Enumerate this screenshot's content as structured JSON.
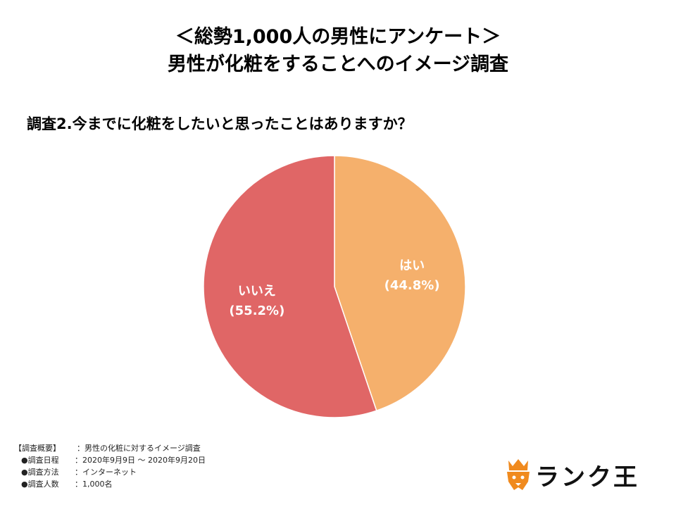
{
  "title": {
    "line1": "＜総勢1,000人の男性にアンケート＞",
    "line2": "男性が化粧をすることへのイメージ調査"
  },
  "question": "調査2.今までに化粧をしたいと思ったことはありますか？",
  "chart_data": {
    "type": "pie",
    "title": "調査2.今までに化粧をしたいと思ったことはありますか？",
    "start": "12 o'clock, clockwise",
    "slices": [
      {
        "label": "はい",
        "value": 44.8,
        "display": "(44.8%)",
        "color": "#F5B06C"
      },
      {
        "label": "いいえ",
        "value": 55.2,
        "display": "(55.2%)",
        "color": "#E06666"
      }
    ],
    "legend": false
  },
  "summary": {
    "header_key": "【調査概要】",
    "header_val": "：男性の化粧に対するイメージ調査",
    "rows": [
      {
        "key": "●調査日程",
        "val": "：2020年9月9日 〜 2020年9月20日"
      },
      {
        "key": "●調査方法",
        "val": "：インターネット"
      },
      {
        "key": "●調査人数",
        "val": "：1,000名"
      }
    ]
  },
  "logo": {
    "text": "ランク王",
    "icon": "crowned-lion-icon",
    "accent": "#F08A1E"
  }
}
